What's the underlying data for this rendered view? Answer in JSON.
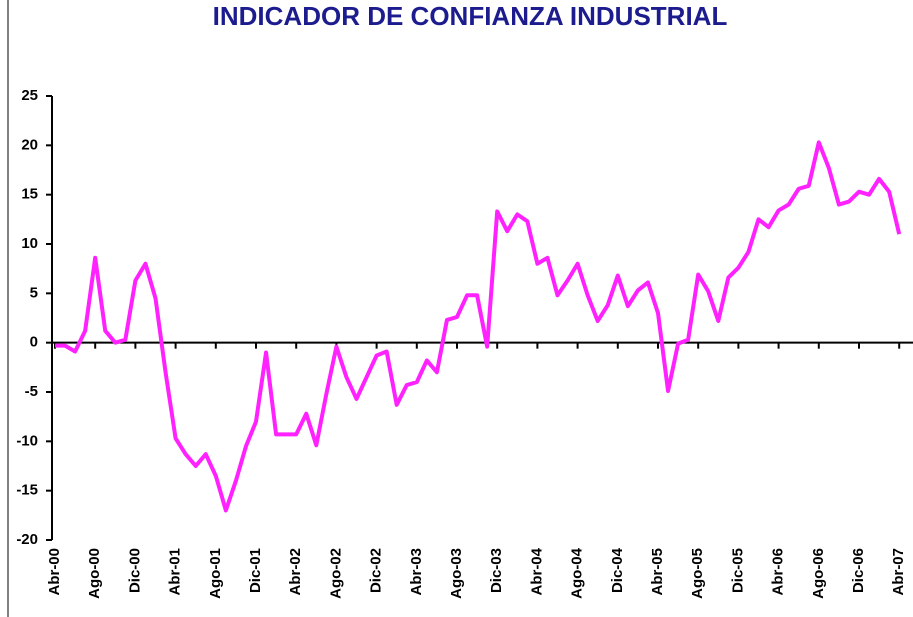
{
  "chart_data": {
    "type": "line",
    "title": "INDICADOR DE CONFIANZA INDUSTRIAL",
    "categories": [
      "Abr-00",
      null,
      null,
      null,
      "Ago-00",
      null,
      null,
      null,
      "Dic-00",
      null,
      null,
      null,
      "Abr-01",
      null,
      null,
      null,
      "Ago-01",
      null,
      null,
      null,
      "Dic-01",
      null,
      null,
      null,
      "Abr-02",
      null,
      null,
      null,
      "Ago-02",
      null,
      null,
      null,
      "Dic-02",
      null,
      null,
      null,
      "Abr-03",
      null,
      null,
      null,
      "Ago-03",
      null,
      null,
      null,
      "Dic-03",
      null,
      null,
      null,
      "Abr-04",
      null,
      null,
      null,
      "Ago-04",
      null,
      null,
      null,
      "Dic-04",
      null,
      null,
      null,
      "Abr-05",
      null,
      null,
      null,
      "Ago-05",
      null,
      null,
      null,
      "Dic-05",
      null,
      null,
      null,
      "Abr-06",
      null,
      null,
      null,
      "Ago-06",
      null,
      null,
      null,
      "Dic-06",
      null,
      null,
      null,
      "Abr-07"
    ],
    "values": [
      -0.3,
      -0.3,
      -0.9,
      1.2,
      8.6,
      1.2,
      0,
      0.3,
      6.3,
      8,
      4.5,
      -3,
      -9.7,
      -11.3,
      -12.5,
      -11.3,
      -13.5,
      -17,
      -14,
      -10.5,
      -8,
      -1,
      -9.3,
      -9.3,
      -9.3,
      -7.2,
      -10.4,
      -5.2,
      -0.4,
      -3.5,
      -5.7,
      -3.5,
      -1.3,
      -0.9,
      -6.3,
      -4.3,
      -4,
      -1.8,
      -3,
      2.3,
      2.6,
      4.8,
      4.8,
      -0.4,
      13.3,
      11.3,
      13,
      12.3,
      8,
      8.6,
      4.8,
      6.3,
      8,
      4.8,
      2.2,
      3.8,
      6.8,
      3.7,
      5.3,
      6.1,
      3,
      -4.9,
      -0.1,
      0.3,
      6.9,
      5.2,
      2.2,
      6.6,
      7.6,
      9.2,
      12.5,
      11.7,
      13.4,
      14,
      15.6,
      15.9,
      20.3,
      17.7,
      14,
      14.3,
      15.3,
      15,
      16.6,
      15.3,
      11
    ],
    "color": "#ff22ff",
    "ylim": [
      -20,
      25
    ],
    "yticks": [
      -20,
      -15,
      -10,
      -5,
      0,
      5,
      10,
      15,
      20,
      25
    ]
  }
}
